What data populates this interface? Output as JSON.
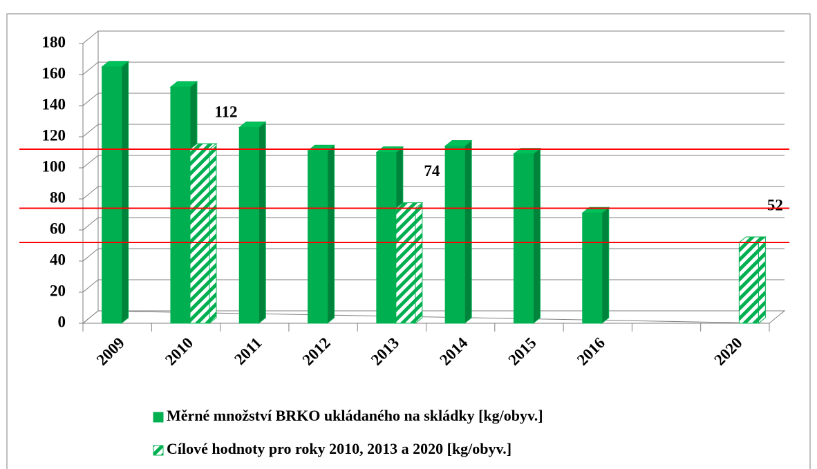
{
  "chart_data": {
    "type": "bar3d",
    "categories": [
      "2009",
      "2010",
      "2011",
      "2012",
      "2013",
      "2014",
      "2015",
      "2016",
      null,
      "2020"
    ],
    "series": [
      {
        "name": "Měrné množství BRKO ukládaného na skládky  [kg/obyv.]",
        "color": "#00b050",
        "values": [
          165,
          152,
          126,
          111,
          110,
          114,
          109,
          71,
          null,
          null
        ]
      },
      {
        "name": "Cílové hodnoty pro roky 2010, 2013 a 2020 [kg/obyv.]",
        "color": "#00b050",
        "pattern": "hatched",
        "values": [
          null,
          112,
          null,
          null,
          74,
          null,
          null,
          null,
          null,
          52
        ],
        "data_labels": true
      }
    ],
    "reference_line_color": "#ff0000",
    "ylim": [
      0,
      180
    ],
    "yticks": [
      0,
      20,
      40,
      60,
      80,
      100,
      120,
      140,
      160,
      180
    ],
    "grid": true
  }
}
